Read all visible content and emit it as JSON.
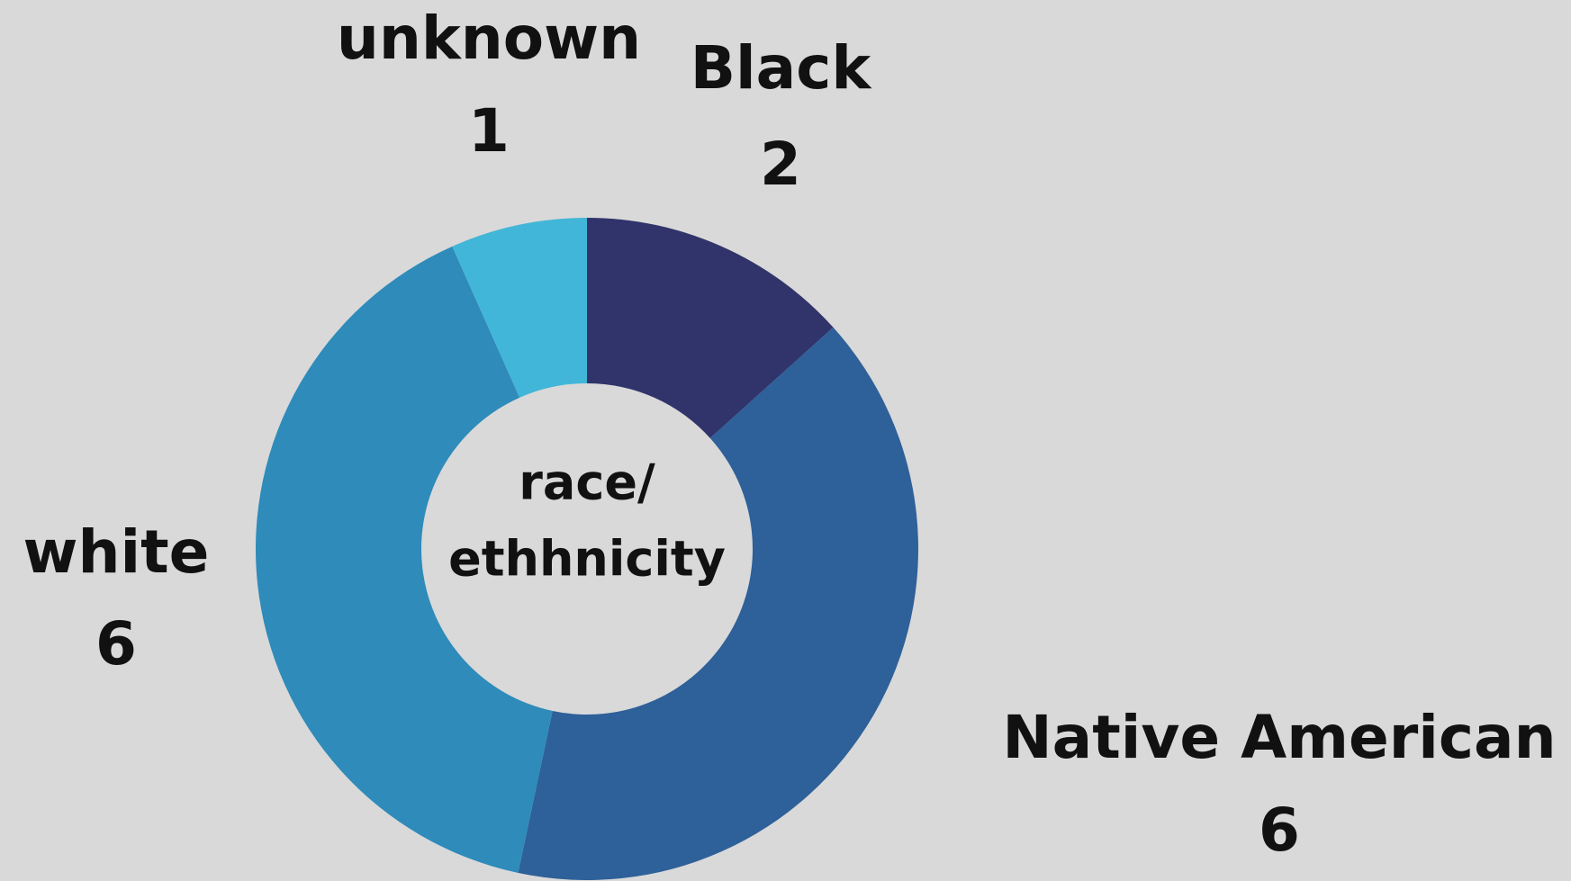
{
  "chart_data": {
    "type": "donut",
    "categories": [
      "Black",
      "Native American",
      "white",
      "unknown"
    ],
    "values": [
      2,
      6,
      6,
      1
    ],
    "colors": [
      "#31336b",
      "#2e6099",
      "#2e8bba",
      "#42b6d8"
    ],
    "center_label": [
      "race/",
      "ethhnicity"
    ]
  }
}
